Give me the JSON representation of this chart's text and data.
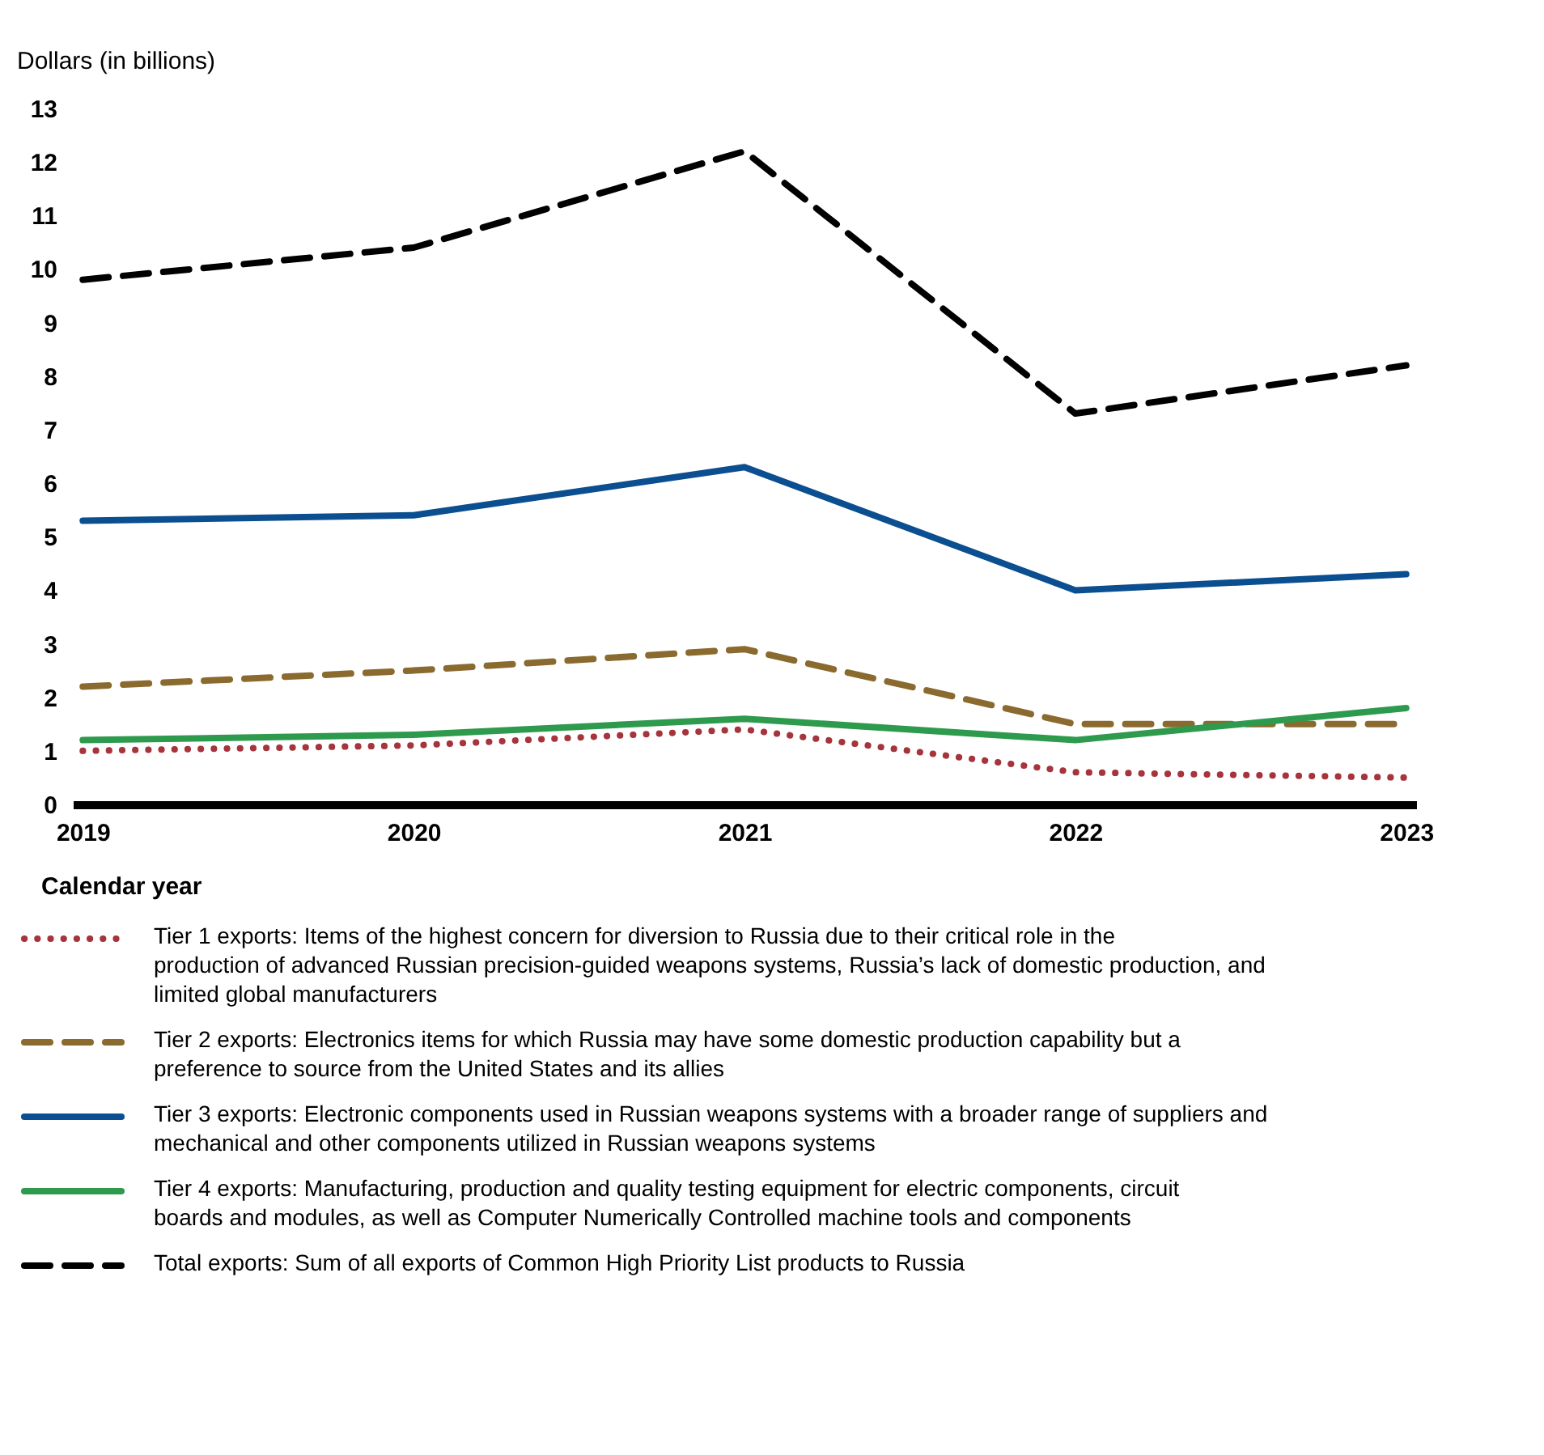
{
  "chart_data": {
    "type": "line",
    "ylabel": "Dollars (in billions)",
    "xlabel": "Calendar year",
    "categories": [
      "2019",
      "2020",
      "2021",
      "2022",
      "2023"
    ],
    "ylim": [
      0,
      13
    ],
    "yticks": [
      0,
      1,
      2,
      3,
      4,
      5,
      6,
      7,
      8,
      9,
      10,
      11,
      12,
      13
    ],
    "grid": false,
    "legend": "bottom",
    "marker": "none",
    "series": [
      {
        "name": "Tier 1 exports: Items of the highest concern for diversion to Russia due to their critical role in the production of advanced Russian precision-guided weapons systems, Russia’s lack of domestic production, and limited global manufacturers",
        "color": "#a6343c",
        "line_style": "dotted",
        "values": [
          1.0,
          1.1,
          1.4,
          0.6,
          0.5
        ]
      },
      {
        "name": "Tier 2 exports: Electronics items for which Russia may have some domestic production capability but a preference to source from the United States and its allies",
        "color": "#8a6a2e",
        "line_style": "dashed",
        "values": [
          2.2,
          2.5,
          2.9,
          1.5,
          1.5
        ]
      },
      {
        "name": "Tier 3 exports: Electronic components used in Russian weapons systems with a broader range of suppliers and mechanical and other components utilized in Russian weapons systems",
        "color": "#0b4f90",
        "line_style": "solid",
        "values": [
          5.3,
          5.4,
          6.3,
          4.0,
          4.3
        ]
      },
      {
        "name": "Tier 4 exports: Manufacturing, production and quality testing equipment for electric components, circuit boards and modules, as well as Computer Numerically Controlled machine tools and components",
        "color": "#2e9a4e",
        "line_style": "solid",
        "values": [
          1.2,
          1.3,
          1.6,
          1.2,
          1.8
        ]
      },
      {
        "name": "Total exports: Sum of all exports of Common High Priority List products to Russia",
        "color": "#000000",
        "line_style": "dashed",
        "values": [
          9.8,
          10.4,
          12.2,
          7.3,
          8.2
        ]
      }
    ]
  }
}
